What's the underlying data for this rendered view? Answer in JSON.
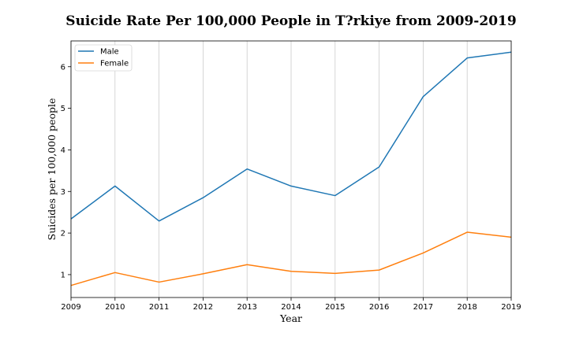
{
  "chart_data": {
    "type": "line",
    "title": "Suicide Rate Per 100,000 People in T?rkiye from 2009-2019",
    "xlabel": "Year",
    "ylabel": "Suicides per 100,000 people",
    "x": [
      2009,
      2010,
      2011,
      2012,
      2013,
      2014,
      2015,
      2016,
      2017,
      2018,
      2019
    ],
    "xlim": [
      2009,
      2019
    ],
    "ylim": [
      0.45,
      6.62
    ],
    "yticks": [
      1,
      2,
      3,
      4,
      5,
      6
    ],
    "grid": "vertical",
    "legend": "top-left",
    "series": [
      {
        "name": "Male",
        "color": "#1f77b4",
        "values": [
          2.34,
          3.13,
          2.29,
          2.85,
          3.54,
          3.13,
          2.9,
          3.59,
          5.28,
          6.21,
          6.35
        ]
      },
      {
        "name": "Female",
        "color": "#ff7f0e",
        "values": [
          0.74,
          1.05,
          0.82,
          1.02,
          1.24,
          1.08,
          1.03,
          1.11,
          1.52,
          2.02,
          1.9
        ]
      }
    ]
  }
}
